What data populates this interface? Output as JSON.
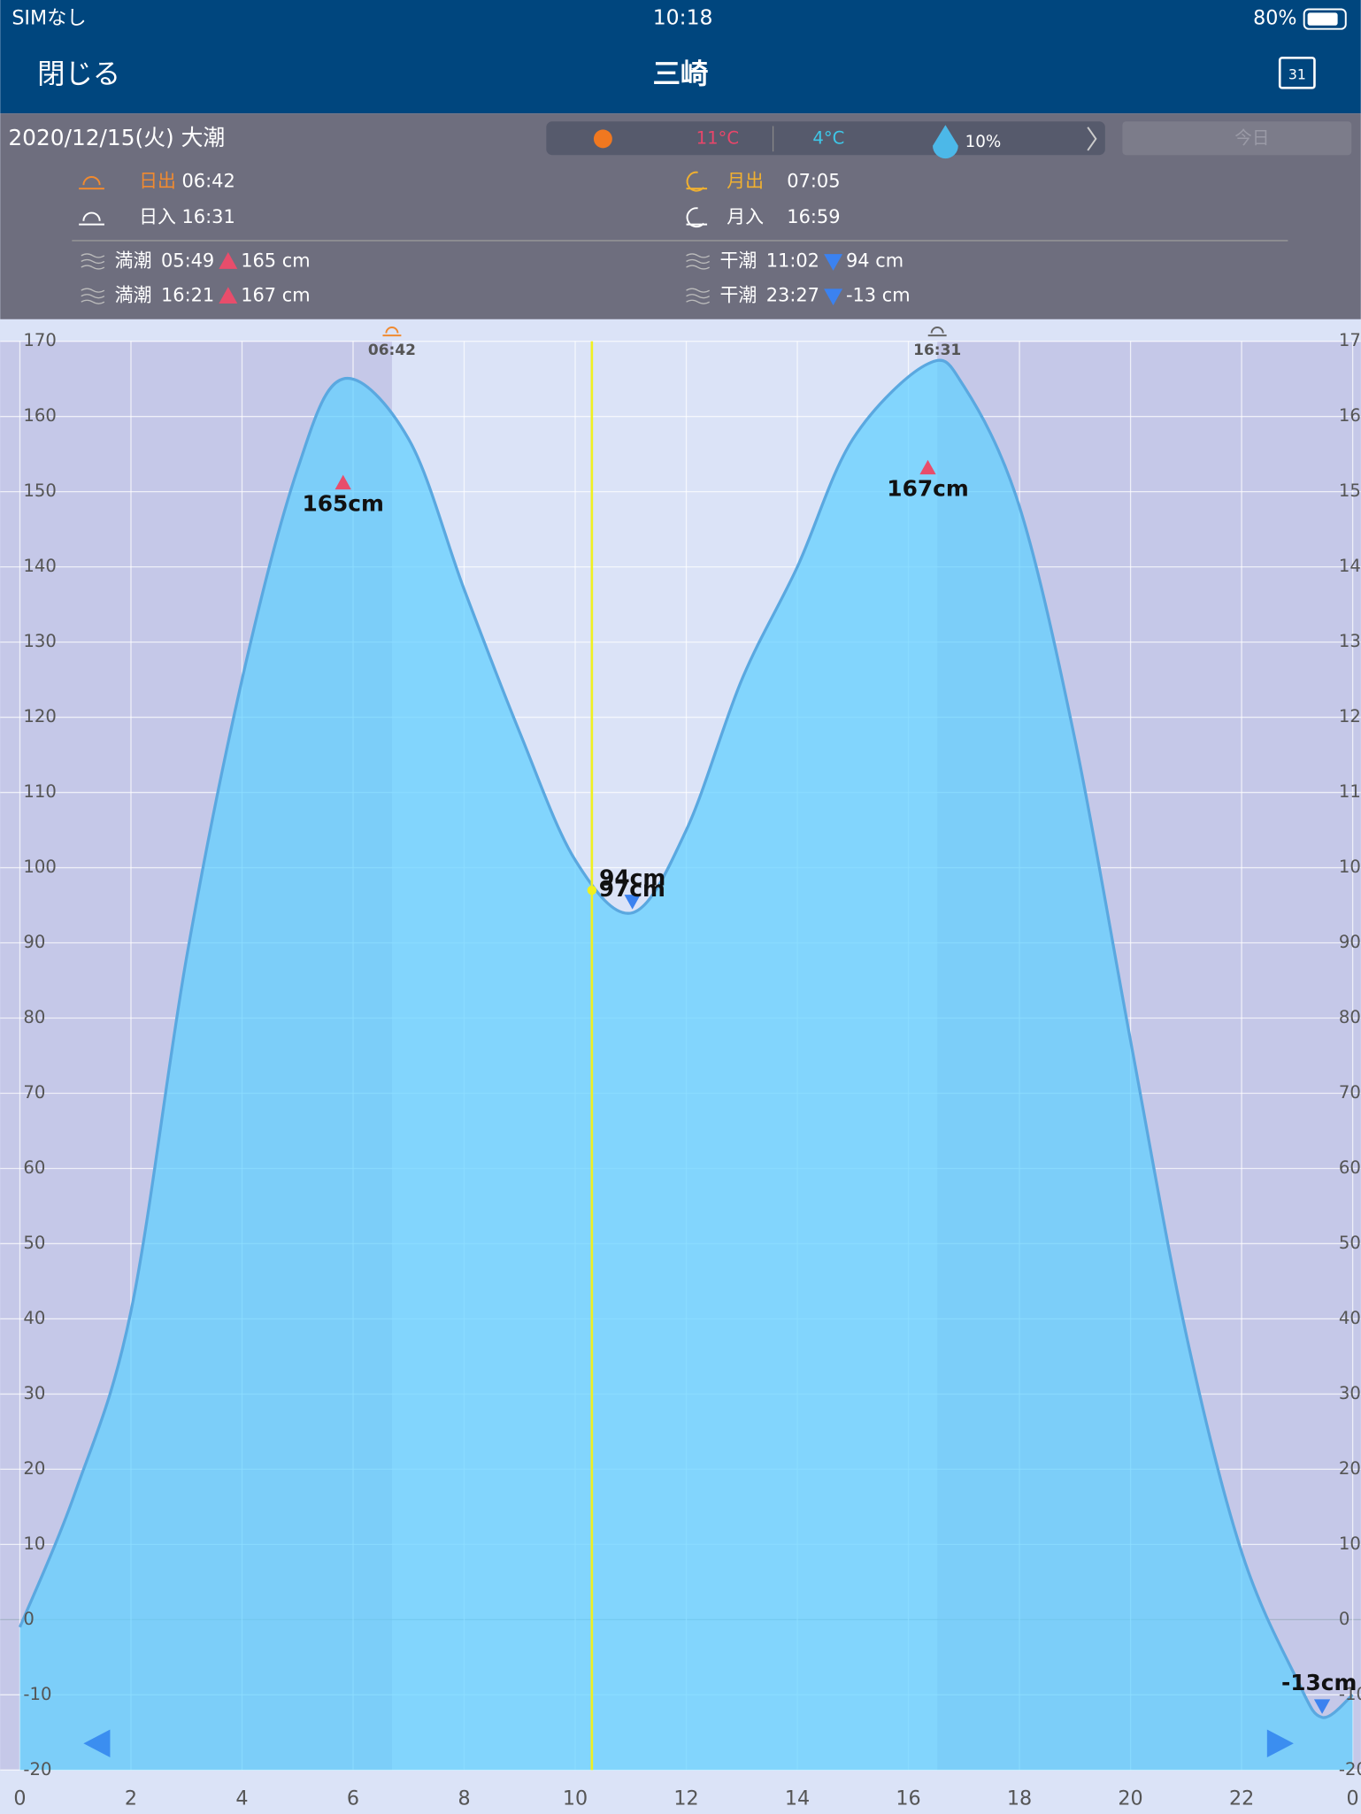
{
  "status_bar": {
    "carrier": "SIMなし",
    "time": "10:18",
    "battery": "80%"
  },
  "nav": {
    "close": "閉じる",
    "title": "三崎",
    "calendar_day": "31"
  },
  "info": {
    "date": "2020/12/15(火) 大潮",
    "weather": {
      "high": "11°C",
      "low": "4°C",
      "rain": "10%"
    },
    "today": "今日",
    "sun": [
      {
        "label": "日出",
        "time": "06:42"
      },
      {
        "label": "日入",
        "time": "16:31"
      }
    ],
    "moon": [
      {
        "label": "月出",
        "time": "07:05"
      },
      {
        "label": "月入",
        "time": "16:59"
      }
    ],
    "tides": [
      {
        "label": "満潮",
        "time": "05:49",
        "level": "165 cm",
        "marker": "up"
      },
      {
        "label": "満潮",
        "time": "16:21",
        "level": "167 cm",
        "marker": "up"
      },
      {
        "label": "干潮",
        "time": "11:02",
        "level": "94 cm",
        "marker": "down"
      },
      {
        "label": "干潮",
        "time": "23:27",
        "level": "-13 cm",
        "marker": "down"
      }
    ]
  },
  "chart_data": {
    "type": "area",
    "x": [
      0,
      1,
      2,
      3,
      4,
      5,
      5.82,
      7,
      8,
      9,
      10,
      11.03,
      12,
      13,
      14,
      15,
      16.35,
      17,
      18,
      19,
      20,
      21,
      22,
      23,
      23.45,
      24
    ],
    "values": [
      -1,
      17,
      41,
      88,
      125,
      153,
      165,
      157,
      137,
      118,
      101,
      94,
      105,
      125,
      140,
      157,
      167,
      164,
      148,
      117,
      77,
      38,
      9,
      -8,
      -13,
      -10
    ],
    "color": "#5fd0ff",
    "line_color": "#5aa8e0",
    "xlim": [
      0,
      24
    ],
    "xticks": [
      0,
      2,
      4,
      6,
      8,
      10,
      12,
      14,
      16,
      18,
      20,
      22,
      {
        "value": 24,
        "label": "0"
      }
    ],
    "ylim": [
      -20,
      170
    ],
    "yticks": [
      -20,
      -10,
      0,
      10,
      20,
      30,
      40,
      50,
      60,
      70,
      80,
      90,
      100,
      110,
      120,
      130,
      140,
      150,
      160,
      170
    ],
    "grid": true,
    "daylight": [
      {
        "value": 6.7,
        "label": "06:42"
      },
      {
        "value": 16.52,
        "label": "16:31"
      }
    ],
    "current": {
      "x": 10.3,
      "value": 97,
      "label": "97cm"
    },
    "annotations": [
      {
        "x": 5.82,
        "value": 165,
        "label": "165cm",
        "marker": "up",
        "color": "#e84d6b"
      },
      {
        "x": 16.35,
        "value": 167,
        "label": "167cm",
        "marker": "up",
        "color": "#e84d6b"
      },
      {
        "x": 11.03,
        "value": 94,
        "label": "94cm",
        "marker": "down",
        "color": "#3b82f0"
      },
      {
        "x": 23.45,
        "value": -13,
        "label": "-13cm",
        "marker": "down",
        "color": "#3b82f0"
      }
    ]
  }
}
